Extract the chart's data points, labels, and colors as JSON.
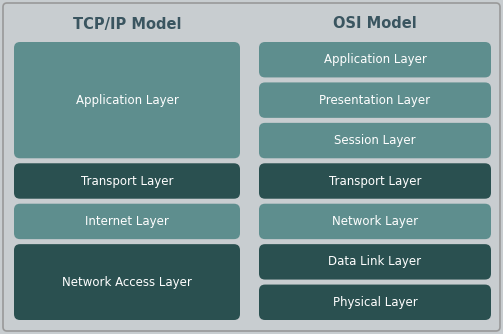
{
  "title_left": "TCP/IP Model",
  "title_right": "OSI Model",
  "background_color": "#c8cdd0",
  "title_color": "#3a5560",
  "text_color": "#ffffff",
  "light_box_color": "#5e8e8e",
  "dark_box_color": "#2a5050",
  "tcp_layers": [
    {
      "label": "Application Layer",
      "span": 3,
      "color": "#5e8e8e"
    },
    {
      "label": "Transport Layer",
      "span": 1,
      "color": "#2a5050"
    },
    {
      "label": "Internet Layer",
      "span": 1,
      "color": "#5e8e8e"
    },
    {
      "label": "Network Access Layer",
      "span": 2,
      "color": "#2a5050"
    }
  ],
  "osi_layers": [
    {
      "label": "Application Layer",
      "color": "#5e8e8e"
    },
    {
      "label": "Presentation Layer",
      "color": "#5e8e8e"
    },
    {
      "label": "Session Layer",
      "color": "#5e8e8e"
    },
    {
      "label": "Transport Layer",
      "color": "#2a5050"
    },
    {
      "label": "Network Layer",
      "color": "#5e8e8e"
    },
    {
      "label": "Data Link Layer",
      "color": "#2a5050"
    },
    {
      "label": "Physical Layer",
      "color": "#2a5050"
    }
  ],
  "fig_w": 5.03,
  "fig_h": 3.34,
  "dpi": 100
}
